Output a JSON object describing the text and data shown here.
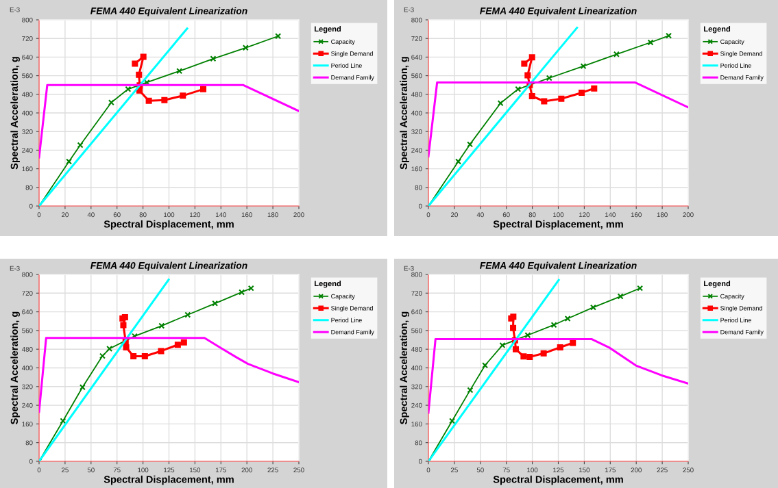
{
  "chart_data": [
    {
      "type": "line",
      "title": "FEMA 440 Equivalent Linearization",
      "xlabel": "Spectral Displacement, mm",
      "ylabel": "Spectral Acceleration, g",
      "legend_title": "Legend",
      "annotations": [
        "E-3"
      ],
      "xlim": [
        0,
        200
      ],
      "xticks": [
        0,
        20,
        40,
        60,
        80,
        100,
        120,
        140,
        160,
        180,
        200
      ],
      "ylim": [
        0,
        800
      ],
      "yticks": [
        0,
        80,
        160,
        240,
        320,
        400,
        480,
        560,
        640,
        720,
        800
      ],
      "grid": true,
      "legend": "right",
      "series": [
        {
          "name": "Capacity",
          "color": "#008000",
          "marker": "cross",
          "x": [
            0,
            23,
            31.7,
            55.6,
            68.5,
            83,
            108,
            134,
            159,
            184
          ],
          "values": [
            0,
            191,
            262,
            445,
            502,
            531,
            580,
            633,
            680,
            730
          ]
        },
        {
          "name": "Single Demand",
          "color": "#ff0000",
          "marker": "square",
          "x": [
            73.8,
            80.3,
            76.9,
            77.5,
            77.3,
            84.5,
            96.5,
            110.7,
            126.4
          ],
          "values": [
            612,
            641,
            564,
            518,
            496,
            452,
            455,
            474,
            502
          ]
        },
        {
          "name": "Period Line",
          "color": "#00ffff",
          "marker": "none",
          "x": [
            0,
            114
          ],
          "values": [
            0,
            763
          ]
        },
        {
          "name": "Demand Family",
          "color": "#ff00ff",
          "marker": "none",
          "x": [
            0,
            6.3,
            157,
            200
          ],
          "values": [
            209,
            520,
            520,
            408
          ]
        }
      ]
    },
    {
      "type": "line",
      "title": "FEMA 440 Equivalent Linearization",
      "xlabel": "Spectral Displacement, mm",
      "ylabel": "Spectral Acceleration, g",
      "legend_title": "Legend",
      "annotations": [
        "E-3"
      ],
      "xlim": [
        0,
        200
      ],
      "xticks": [
        0,
        20,
        40,
        60,
        80,
        100,
        120,
        140,
        160,
        180,
        200
      ],
      "ylim": [
        0,
        800
      ],
      "yticks": [
        0,
        80,
        160,
        240,
        320,
        400,
        480,
        560,
        640,
        720,
        800
      ],
      "grid": true,
      "legend": "right",
      "series": [
        {
          "name": "Capacity",
          "color": "#008000",
          "marker": "cross",
          "x": [
            0,
            23,
            32,
            55.5,
            69,
            93,
            119.3,
            144.8,
            171,
            185
          ],
          "values": [
            0,
            191,
            265,
            442,
            502,
            550,
            601,
            652,
            703,
            732
          ]
        },
        {
          "name": "Single Demand",
          "color": "#ff0000",
          "marker": "square",
          "x": [
            73.8,
            79.8,
            76.4,
            78,
            79.8,
            89.1,
            102.3,
            118,
            127.6
          ],
          "values": [
            612,
            639,
            562,
            520,
            472,
            450,
            461,
            487,
            505
          ]
        },
        {
          "name": "Period Line",
          "color": "#00ffff",
          "marker": "none",
          "x": [
            0,
            114.4
          ],
          "values": [
            0,
            766
          ]
        },
        {
          "name": "Demand Family",
          "color": "#ff00ff",
          "marker": "none",
          "x": [
            0,
            6.7,
            159,
            200
          ],
          "values": [
            213,
            531,
            531,
            424
          ]
        }
      ]
    },
    {
      "type": "line",
      "title": "FEMA 440 Equivalent Linearization",
      "xlabel": "Spectral Displacement, mm",
      "ylabel": "Spectral Acceleration, g",
      "legend_title": "Legend",
      "annotations": [
        "E-3"
      ],
      "xlim": [
        0,
        250
      ],
      "xticks": [
        0,
        25,
        50,
        75,
        100,
        125,
        150,
        175,
        200,
        225,
        250
      ],
      "ylim": [
        0,
        800
      ],
      "yticks": [
        0,
        80,
        160,
        240,
        320,
        400,
        480,
        560,
        640,
        720,
        800
      ],
      "grid": true,
      "legend": "right",
      "series": [
        {
          "name": "Capacity",
          "color": "#008000",
          "marker": "cross",
          "x": [
            0,
            23,
            41.8,
            61,
            67.7,
            92,
            117.9,
            143,
            169.3,
            195,
            204
          ],
          "values": [
            0,
            173,
            317,
            451,
            482,
            536,
            580,
            627,
            676,
            724,
            741
          ]
        },
        {
          "name": "Single Demand",
          "color": "#ff0000",
          "marker": "square",
          "x": [
            80.3,
            82.7,
            81.1,
            83.3,
            83.8,
            90.8,
            101.8,
            117.4,
            133.5,
            139.4
          ],
          "values": [
            612,
            617,
            583,
            514,
            488,
            450,
            450,
            472,
            499,
            509
          ]
        },
        {
          "name": "Period Line",
          "color": "#00ffff",
          "marker": "none",
          "x": [
            0,
            124.7
          ],
          "values": [
            0,
            778
          ]
        },
        {
          "name": "Demand Family",
          "color": "#ff00ff",
          "marker": "none",
          "x": [
            0,
            6.8,
            159.2,
            175,
            190,
            201,
            225,
            250
          ],
          "values": [
            212,
            528,
            528,
            485,
            445,
            417,
            376,
            339
          ]
        }
      ]
    },
    {
      "type": "line",
      "title": "FEMA 440 Equivalent Linearization",
      "xlabel": "Spectral Displacement, mm",
      "ylabel": "Spectral Acceleration, g",
      "legend_title": "Legend",
      "annotations": [
        "E-3"
      ],
      "xlim": [
        0,
        250
      ],
      "xticks": [
        0,
        25,
        50,
        75,
        100,
        125,
        150,
        175,
        200,
        225,
        250
      ],
      "ylim": [
        0,
        800
      ],
      "yticks": [
        0,
        80,
        160,
        240,
        320,
        400,
        480,
        560,
        640,
        720,
        800
      ],
      "grid": true,
      "legend": "right",
      "series": [
        {
          "name": "Capacity",
          "color": "#008000",
          "marker": "cross",
          "x": [
            0,
            22.8,
            40.2,
            54.5,
            71.2,
            95.6,
            120.8,
            134,
            158.6,
            184.8,
            203.6
          ],
          "values": [
            0,
            173,
            305,
            411,
            497,
            540,
            584,
            611,
            659,
            706,
            741
          ]
        },
        {
          "name": "Single Demand",
          "color": "#ff0000",
          "marker": "square",
          "x": [
            79.7,
            81.7,
            81.5,
            83.3,
            84.1,
            91.6,
            97.5,
            110.9,
            126.8,
            139
          ],
          "values": [
            612,
            619,
            571,
            518,
            480,
            449,
            447,
            462,
            488,
            507
          ]
        },
        {
          "name": "Period Line",
          "color": "#00ffff",
          "marker": "none",
          "x": [
            0,
            125.4
          ],
          "values": [
            0,
            776
          ]
        },
        {
          "name": "Demand Family",
          "color": "#ff00ff",
          "marker": "none",
          "x": [
            0,
            6.8,
            157.3,
            174.4,
            199.7,
            224.5,
            250
          ],
          "values": [
            208,
            523,
            523,
            486,
            410,
            368,
            333
          ]
        }
      ]
    }
  ]
}
